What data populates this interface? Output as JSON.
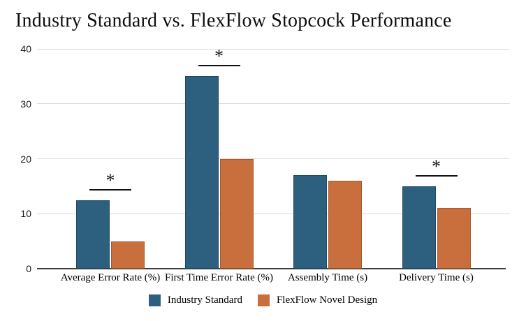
{
  "title": "Industry Standard vs. FlexFlow Stopcock Performance",
  "chart_data": {
    "type": "bar",
    "title": "Industry Standard vs. FlexFlow Stopcock Performance",
    "categories": [
      "Average Error Rate (%)",
      "First Time Error Rate (%)",
      "Assembly Time (s)",
      "Delivery Time (s)"
    ],
    "series": [
      {
        "name": "Industry Standard",
        "color": "#2d5f7e",
        "border_color": "#1e4a63",
        "values": [
          12.5,
          35,
          17,
          15
        ]
      },
      {
        "name": "FlexFlow Novel Design",
        "color": "#c96f3d",
        "border_color": "#a8572b",
        "values": [
          5,
          20,
          16,
          11
        ]
      }
    ],
    "significance_markers": [
      true,
      true,
      false,
      true
    ],
    "significance_symbol": "*",
    "xlabel": "",
    "ylabel": "",
    "ylim": [
      0,
      40
    ],
    "yticks": [
      0,
      10,
      20,
      30,
      40
    ],
    "grid": true,
    "legend_position": "bottom",
    "colors": {
      "gridline": "#d9d9d9",
      "axis_line": "#3d3d3d",
      "tick_text": "#1a1a1a",
      "background": "#ffffff"
    }
  }
}
